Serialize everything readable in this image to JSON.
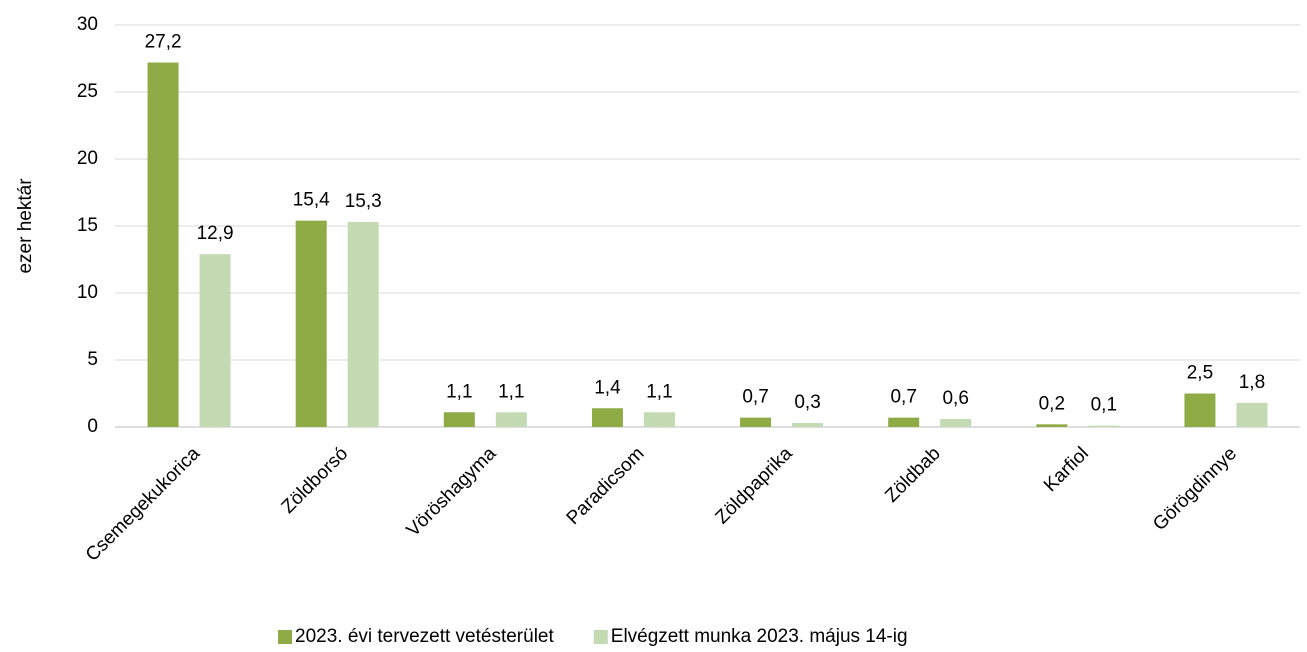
{
  "chart_data": {
    "type": "bar",
    "y_label": "ezer hektár",
    "categories": [
      "Csemegekukorica",
      "Zöldborsó",
      "Vöröshagyma",
      "Paradicsom",
      "Zöldpaprika",
      "Zöldbab",
      "Karfiol",
      "Görögdinnye"
    ],
    "series": [
      {
        "name": "2023. évi tervezett vetésterület",
        "color": "#8eab45",
        "values": [
          27.2,
          15.4,
          1.1,
          1.4,
          0.7,
          0.7,
          0.2,
          2.5
        ],
        "value_labels": [
          "27,2",
          "15,4",
          "1,1",
          "1,4",
          "0,7",
          "0,7",
          "0,2",
          "2,5"
        ]
      },
      {
        "name": "Elvégzett munka 2023. május 14-ig",
        "color": "#c3dab3",
        "values": [
          12.9,
          15.3,
          1.1,
          1.1,
          0.3,
          0.6,
          0.1,
          1.8
        ],
        "value_labels": [
          "12,9",
          "15,3",
          "1,1",
          "1,1",
          "0,3",
          "0,6",
          "0,1",
          "1,8"
        ]
      }
    ],
    "ylim": [
      0,
      30
    ],
    "yticks": [
      0,
      5,
      10,
      15,
      20,
      25,
      30
    ],
    "grid": true,
    "legend": "bottom"
  }
}
